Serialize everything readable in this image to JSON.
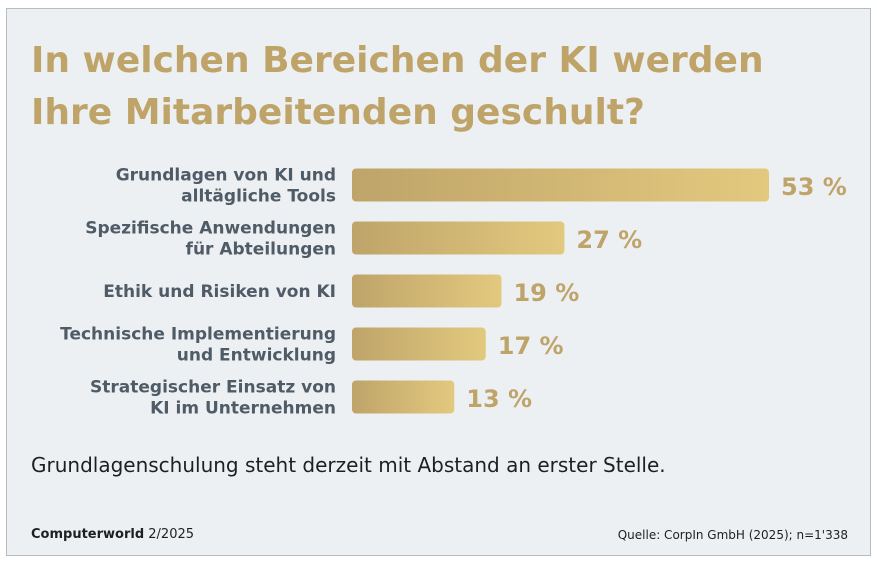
{
  "chart_data": {
    "type": "bar",
    "orientation": "horizontal",
    "title": "In welchen Bereichen der KI werden Ihre Mitarbeitenden geschult?",
    "categories": [
      [
        "Grundlagen von KI und",
        "alltägliche Tools"
      ],
      [
        "Spezifische Anwendungen",
        "für Abteilungen"
      ],
      [
        "Ethik und Risiken von KI"
      ],
      [
        "Technische Implementierung",
        "und Entwicklung"
      ],
      [
        "Strategischer Einsatz von",
        "KI im Unternehmen"
      ]
    ],
    "values": [
      53,
      27,
      19,
      17,
      13
    ],
    "value_labels": [
      "53 %",
      "27 %",
      "19 %",
      "17 %",
      "13 %"
    ],
    "unit": "%",
    "xlim": [
      0,
      53
    ],
    "grid": false,
    "legend": "none",
    "colors": {
      "bar_start": "#bfa46a",
      "bar_end": "#e3c97e",
      "value_label": "#bfa46a",
      "category_label": "#4f5b66"
    }
  },
  "subtitle": "Grundlagenschulung steht derzeit mit Abstand an erster Stelle.",
  "footer": {
    "brand": "Computerworld",
    "issue": "2/2025",
    "source": "Quelle: CorpIn GmbH (2025); n=1'338"
  }
}
